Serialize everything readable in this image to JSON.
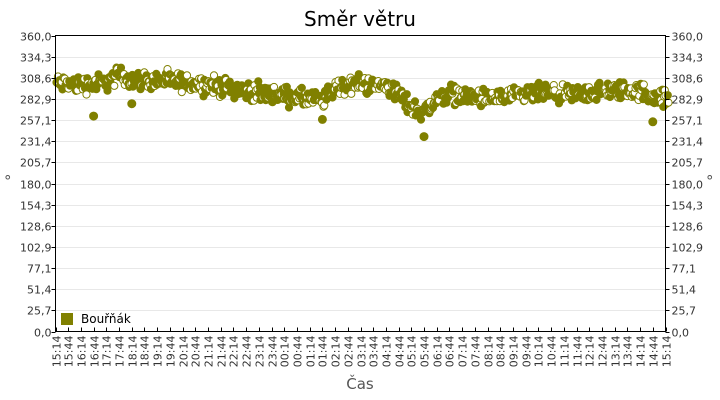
{
  "chart_data": {
    "type": "scatter",
    "title": "Směr větru",
    "xlabel": "Čas",
    "ylabel": "°",
    "ylim": [
      0,
      360
    ],
    "y_ticks": [
      "0,0",
      "25,7",
      "51,4",
      "77,1",
      "102,9",
      "128,6",
      "154,3",
      "180,0",
      "205,7",
      "231,4",
      "257,1",
      "282,9",
      "308,6",
      "334,3",
      "360,0"
    ],
    "y_ticks_right": [
      "0,0",
      "25,7",
      "51,4",
      "77,1",
      "102,9",
      "128,6",
      "154,3",
      "180,0",
      "205,7",
      "231,4",
      "257,1",
      "282,9",
      "308,6",
      "334,3",
      "360,0"
    ],
    "x_ticks": [
      "15:14",
      "15:44",
      "16:14",
      "16:44",
      "17:14",
      "17:44",
      "18:14",
      "18:44",
      "19:14",
      "19:44",
      "20:14",
      "20:44",
      "21:14",
      "21:44",
      "22:14",
      "22:44",
      "23:14",
      "23:44",
      "00:14",
      "00:44",
      "01:14",
      "01:44",
      "02:14",
      "02:44",
      "03:14",
      "03:44",
      "04:14",
      "04:44",
      "05:14",
      "05:44",
      "06:14",
      "06:44",
      "07:14",
      "07:44",
      "08:14",
      "08:44",
      "09:14",
      "09:44",
      "10:14",
      "10:44",
      "11:14",
      "11:44",
      "12:14",
      "12:44",
      "13:14",
      "13:44",
      "14:14",
      "14:44",
      "15:14"
    ],
    "grid": true,
    "legend_position": "bottom-left inside",
    "series": [
      {
        "name": "Bouřňák",
        "color": "#808000",
        "trend_x": [
          "15:14",
          "16:14",
          "17:14",
          "17:44",
          "18:14",
          "19:14",
          "20:14",
          "21:14",
          "22:14",
          "23:14",
          "00:14",
          "01:14",
          "01:44",
          "02:14",
          "02:44",
          "03:14",
          "03:44",
          "04:14",
          "04:44",
          "05:14",
          "05:44",
          "06:14",
          "06:44",
          "07:14",
          "08:14",
          "09:14",
          "10:14",
          "11:14",
          "12:14",
          "13:14",
          "14:14",
          "14:44",
          "15:14"
        ],
        "trend_values": [
          302,
          300,
          303,
          312,
          306,
          305,
          303,
          300,
          296,
          290,
          287,
          282,
          280,
          296,
          300,
          302,
          298,
          300,
          288,
          272,
          268,
          282,
          290,
          286,
          283,
          285,
          290,
          287,
          290,
          293,
          292,
          287,
          282
        ],
        "spread": 12,
        "outliers": [
          {
            "x": "16:44",
            "y": 262
          },
          {
            "x": "18:14",
            "y": 277
          },
          {
            "x": "01:44",
            "y": 258
          },
          {
            "x": "05:44",
            "y": 237
          },
          {
            "x": "14:44",
            "y": 255
          }
        ]
      }
    ]
  },
  "legend": {
    "label": "Bouřňák",
    "color": "#808000"
  }
}
